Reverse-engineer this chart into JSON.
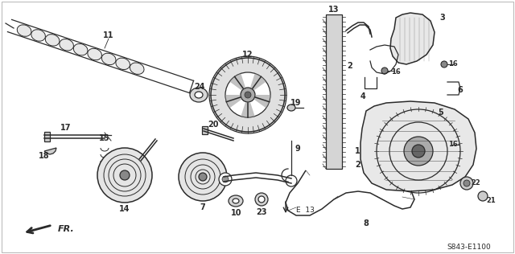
{
  "background_color": "#ffffff",
  "fig_width": 6.4,
  "fig_height": 3.16,
  "dpi": 100,
  "catalog_number": "S843-E1100",
  "arrow_label": "FR.",
  "line_color": "#2a2a2a",
  "gray_fill": "#888888",
  "light_gray": "#bbbbbb",
  "dark_gray": "#555555"
}
